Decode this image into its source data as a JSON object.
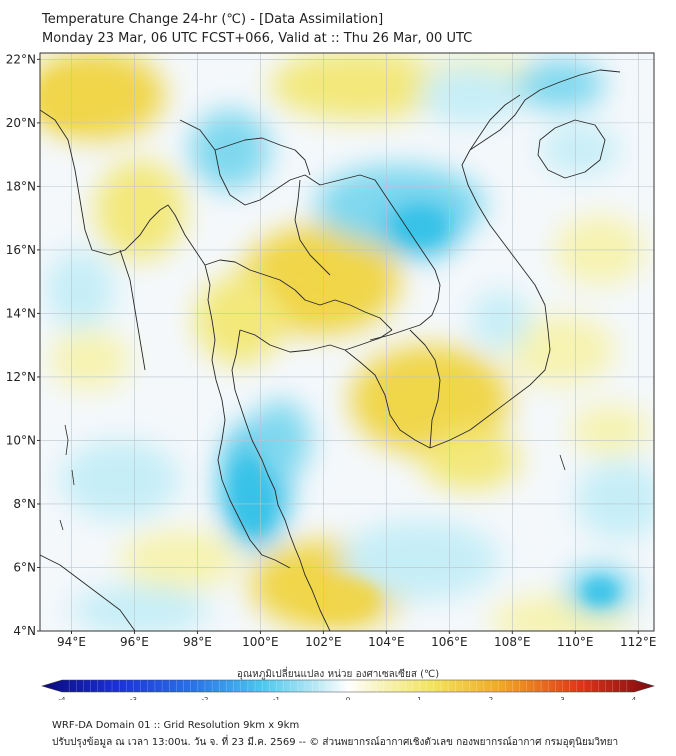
{
  "header": {
    "title_line1": "Temperature Change 24-hr (℃) - [Data Assimilation]",
    "title_line2": "Monday 23 Mar, 06 UTC FCST+066, Valid at :: Thu 26 Mar, 00 UTC"
  },
  "map": {
    "lat_labels": [
      "22°N",
      "20°N",
      "18°N",
      "16°N",
      "14°N",
      "12°N",
      "10°N",
      "8°N",
      "6°N",
      "4°N"
    ],
    "lat_values": [
      22,
      20,
      18,
      16,
      14,
      12,
      10,
      8,
      6,
      4
    ],
    "lon_labels": [
      "94°E",
      "96°E",
      "98°E",
      "100°E",
      "102°E",
      "104°E",
      "106°E",
      "108°E",
      "110°E",
      "112°E"
    ],
    "lon_values": [
      94,
      96,
      98,
      100,
      102,
      104,
      106,
      108,
      110,
      112
    ],
    "lon_range": [
      93,
      112.5
    ],
    "lat_range": [
      4,
      22.2
    ]
  },
  "colorbar": {
    "title": "อุณหภูมิเปลี่ยนแปลง หน่วย องศาเซลเซียส (℃)",
    "ticks": [
      "-4",
      "-3",
      "-2",
      "-1",
      "0",
      "1",
      "2",
      "3",
      "4"
    ],
    "tick_values": [
      -4,
      -3,
      -2,
      -1,
      0,
      1,
      2,
      3,
      4
    ],
    "range": [
      -4,
      4
    ]
  },
  "footer": {
    "line1": "WRF-DA Domain 01 :: Grid Resolution 9km x 9km",
    "line2": "ปรับปรุงข้อมูล ณ เวลา 13:00น. วัน จ. ที่ 23 มี.ค. 2569 -- © ส่วนพยากรณ์อากาศเชิงตัวเลข กองพยากรณ์อากาศ กรมอุตุนิยมวิทยา"
  },
  "colors": {
    "neutral": "#f4f8fb",
    "cool_light": "#c6eef7",
    "cool_mid": "#7fd8ef",
    "cool_strong": "#38c2e8",
    "warm_light": "#f7f3b0",
    "warm_mid": "#f3e87a",
    "warm_strong": "#f0d64a"
  }
}
